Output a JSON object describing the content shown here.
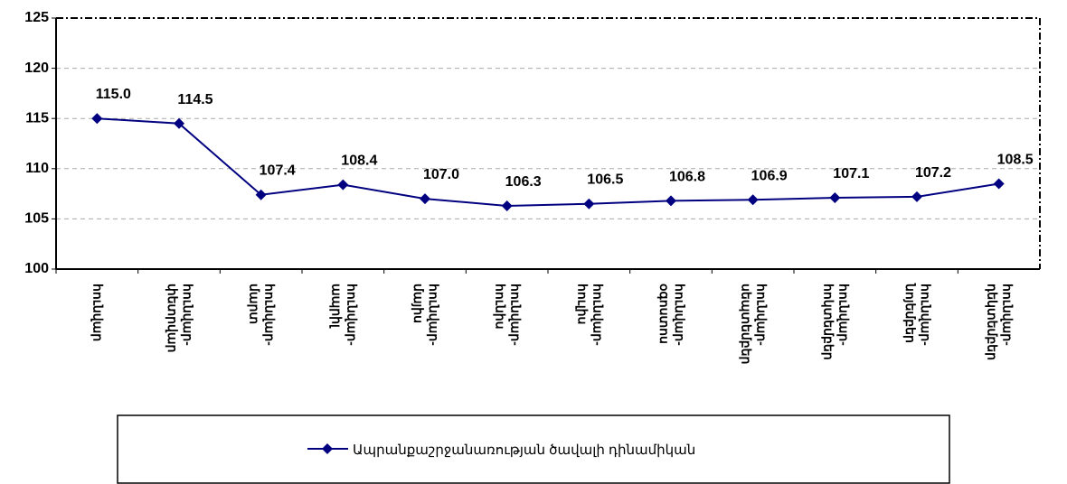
{
  "chart_data": {
    "type": "line",
    "categories": [
      "հունվար",
      "հունվար-փետրվար",
      "հունվար-մարտ",
      "հունվար-ապրիլ",
      "հունվար-մայիս",
      "հունվար-հունիս",
      "հունվար-հուլիս",
      "հունվար-օգոստոս",
      "հունվար-սեպտեմբեր",
      "հունվար-հոկտեմբեր",
      "հունվար-նոյեմբեր",
      "հունվար-դեկտեմբեր"
    ],
    "series": [
      {
        "name": "Ապրանքաշրջանառության ծավալի դինամիկան",
        "color": "#000080",
        "values": [
          115.0,
          114.5,
          107.4,
          108.4,
          107.0,
          106.3,
          106.5,
          106.8,
          106.9,
          107.1,
          107.2,
          108.5
        ],
        "value_labels": [
          "115.0",
          "114.5",
          "107.4",
          "108.4",
          "107.0",
          "106.3",
          "106.5",
          "106.8",
          "106.9",
          "107.1",
          "107.2",
          "108.5"
        ]
      }
    ],
    "ylim": [
      100,
      125
    ],
    "yticks": [
      100,
      105,
      110,
      115,
      120,
      125
    ],
    "grid": true,
    "legend": "bottom"
  }
}
